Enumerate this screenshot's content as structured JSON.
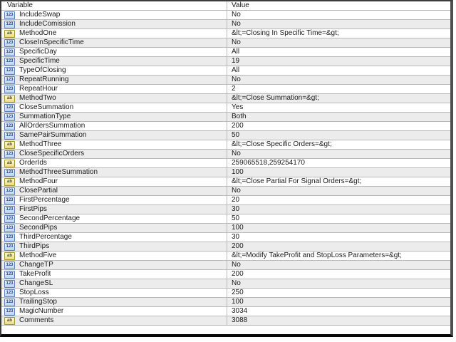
{
  "table": {
    "columns": [
      "Variable",
      "Value"
    ],
    "icon_labels": {
      "numeric": "123",
      "string": "ab"
    },
    "rows": [
      {
        "type": "numeric",
        "variable": "IncludeSwap",
        "value": "No"
      },
      {
        "type": "numeric",
        "variable": "IncludeComission",
        "value": "No"
      },
      {
        "type": "string",
        "variable": "MethodOne",
        "value": "&lt;=Closing In Specific Time=&gt;"
      },
      {
        "type": "numeric",
        "variable": "CloseInSpecificTime",
        "value": "No"
      },
      {
        "type": "numeric",
        "variable": "SpecificDay",
        "value": "All"
      },
      {
        "type": "numeric",
        "variable": "SpecificTime",
        "value": "19"
      },
      {
        "type": "numeric",
        "variable": "TypeOfClosing",
        "value": "All"
      },
      {
        "type": "numeric",
        "variable": "RepeatRunning",
        "value": "No"
      },
      {
        "type": "numeric",
        "variable": "RepeatHour",
        "value": "2"
      },
      {
        "type": "string",
        "variable": "MethodTwo",
        "value": "&lt;=Close Summation=&gt;"
      },
      {
        "type": "numeric",
        "variable": "CloseSummation",
        "value": "Yes"
      },
      {
        "type": "numeric",
        "variable": "SummationType",
        "value": "Both"
      },
      {
        "type": "numeric",
        "variable": "AllOrdersSummation",
        "value": "200"
      },
      {
        "type": "numeric",
        "variable": "SamePairSummation",
        "value": "50"
      },
      {
        "type": "string",
        "variable": "MethodThree",
        "value": "&lt;=Close Specific Orders=&gt;"
      },
      {
        "type": "numeric",
        "variable": "CloseSpecificOrders",
        "value": "No"
      },
      {
        "type": "string",
        "variable": "OrderIds",
        "value": "259065518,259254170"
      },
      {
        "type": "numeric",
        "variable": "MethodThreeSummation",
        "value": "100"
      },
      {
        "type": "string",
        "variable": "MethodFour",
        "value": "&lt;=Close Partial For Signal Orders=&gt;"
      },
      {
        "type": "numeric",
        "variable": "ClosePartial",
        "value": "No"
      },
      {
        "type": "numeric",
        "variable": "FirstPercentage",
        "value": "20"
      },
      {
        "type": "numeric",
        "variable": "FirstPips",
        "value": "30"
      },
      {
        "type": "numeric",
        "variable": "SecondPercentage",
        "value": "50"
      },
      {
        "type": "numeric",
        "variable": "SecondPips",
        "value": "100"
      },
      {
        "type": "numeric",
        "variable": "ThirdPercentage",
        "value": "30"
      },
      {
        "type": "numeric",
        "variable": "ThirdPips",
        "value": "200"
      },
      {
        "type": "string",
        "variable": "MethodFive",
        "value": "&lt;=Modify TakeProfit and StopLoss Parameters=&gt;"
      },
      {
        "type": "numeric",
        "variable": "ChangeTP",
        "value": "No"
      },
      {
        "type": "numeric",
        "variable": "TakeProfit",
        "value": "200"
      },
      {
        "type": "numeric",
        "variable": "ChangeSL",
        "value": "No"
      },
      {
        "type": "numeric",
        "variable": "StopLoss",
        "value": "250"
      },
      {
        "type": "numeric",
        "variable": "TrailingStop",
        "value": "100"
      },
      {
        "type": "numeric",
        "variable": "MagicNumber",
        "value": "3034"
      },
      {
        "type": "string",
        "variable": "Comments",
        "value": "3088"
      }
    ]
  },
  "colors": {
    "row_alt": "#ececec",
    "grid_line": "#b9b9b9",
    "numeric_icon_border": "#5d82b8",
    "string_icon_border": "#a79334",
    "text": "#1a1a1a"
  }
}
